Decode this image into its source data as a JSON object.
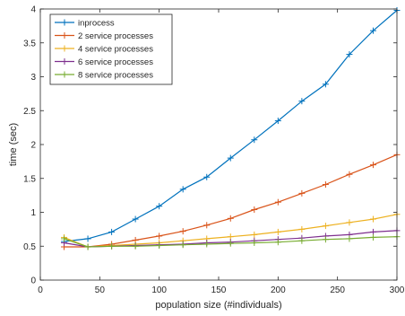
{
  "chart_data": {
    "type": "line",
    "xlabel": "population size (#individuals)",
    "ylabel": "time (sec)",
    "xlim": [
      0,
      300
    ],
    "ylim": [
      0,
      4
    ],
    "xticks": [
      0,
      50,
      100,
      150,
      200,
      250,
      300
    ],
    "yticks": [
      0,
      0.5,
      1,
      1.5,
      2,
      2.5,
      3,
      3.5,
      4
    ],
    "xtick_labels": [
      "0",
      "50",
      "100",
      "150",
      "200",
      "250",
      "300"
    ],
    "ytick_labels": [
      "0",
      "0.5",
      "1",
      "1.5",
      "2",
      "2.5",
      "3",
      "3.5",
      "4"
    ],
    "grid": false,
    "legend_position": "top-left",
    "x": [
      20,
      40,
      60,
      80,
      100,
      120,
      140,
      160,
      180,
      200,
      220,
      240,
      260,
      280,
      300
    ],
    "series": [
      {
        "name": "inprocess",
        "color": "#0072BD",
        "values": [
          0.57,
          0.61,
          0.71,
          0.9,
          1.09,
          1.34,
          1.52,
          1.8,
          2.07,
          2.35,
          2.64,
          2.89,
          3.33,
          3.68,
          3.98
        ]
      },
      {
        "name": "2 service processes",
        "color": "#D95319",
        "values": [
          0.49,
          0.49,
          0.53,
          0.59,
          0.65,
          0.72,
          0.81,
          0.91,
          1.04,
          1.15,
          1.28,
          1.41,
          1.56,
          1.7,
          1.85
        ]
      },
      {
        "name": "4 service processes",
        "color": "#EDB120",
        "values": [
          0.63,
          0.49,
          0.51,
          0.53,
          0.55,
          0.58,
          0.61,
          0.64,
          0.67,
          0.71,
          0.75,
          0.8,
          0.85,
          0.9,
          0.97
        ]
      },
      {
        "name": "6 service processes",
        "color": "#7E2F8E",
        "values": [
          0.55,
          0.49,
          0.5,
          0.51,
          0.52,
          0.53,
          0.55,
          0.56,
          0.58,
          0.6,
          0.62,
          0.65,
          0.67,
          0.71,
          0.73
        ]
      },
      {
        "name": "8 service processes",
        "color": "#77AC30",
        "values": [
          0.61,
          0.49,
          0.5,
          0.5,
          0.51,
          0.52,
          0.53,
          0.54,
          0.55,
          0.56,
          0.58,
          0.6,
          0.61,
          0.63,
          0.64
        ]
      }
    ]
  }
}
